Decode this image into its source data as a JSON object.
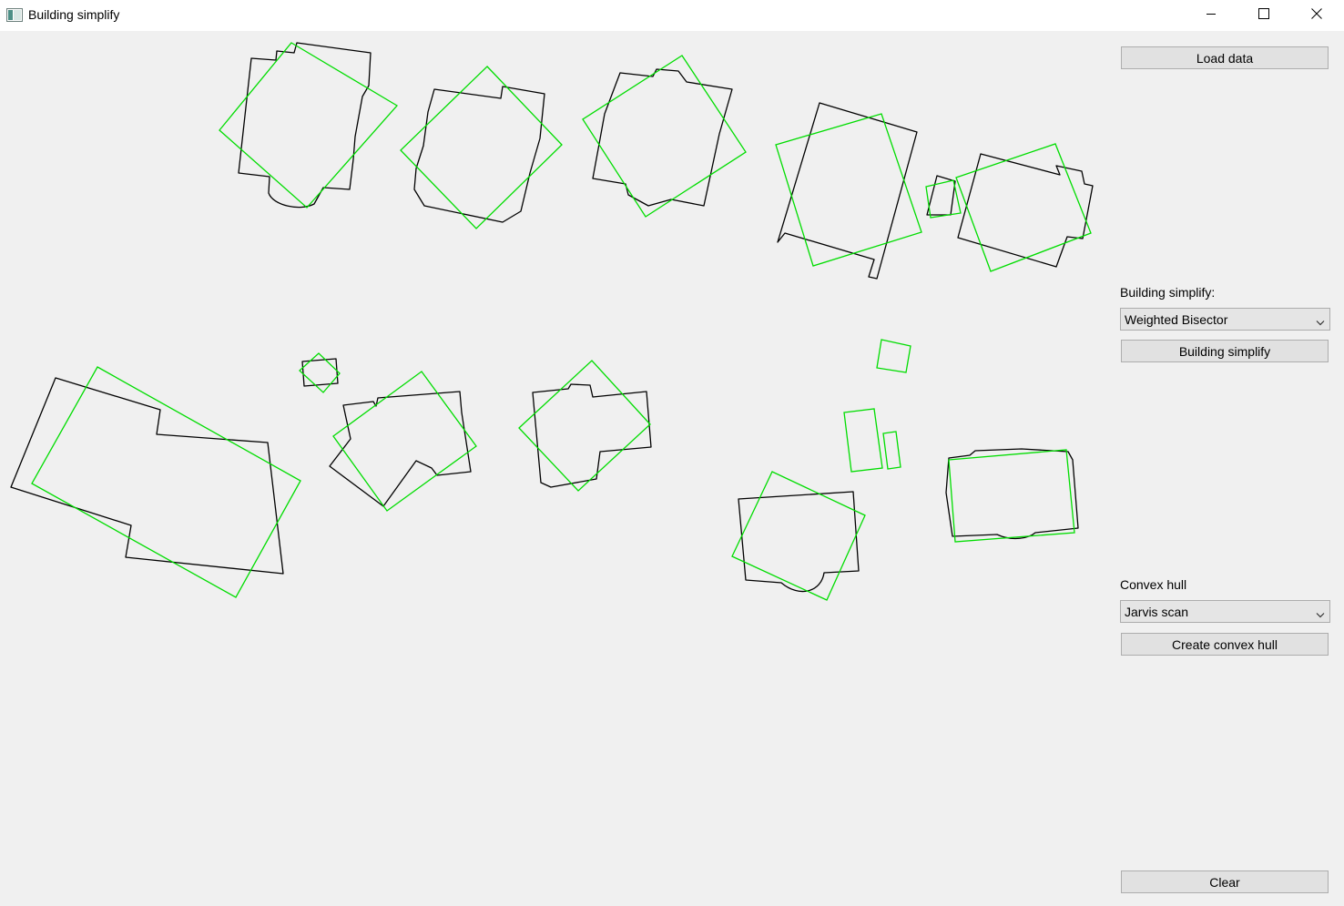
{
  "window": {
    "title": "Building simplify",
    "icons": [
      "app-icon",
      "minimize-icon",
      "maximize-icon",
      "close-icon"
    ]
  },
  "controls": {
    "load_label": "Load data",
    "simplify_label": "Building simplify:",
    "simplify_selected": "Weighted Bisector",
    "simplify_button": "Building simplify",
    "hull_label": "Convex hull",
    "hull_selected": "Jarvis scan",
    "hull_button": "Create convex hull",
    "clear_label": "Clear"
  },
  "colors": {
    "building_outline": "#000000",
    "simplified_outline": "#00dd00",
    "background": "#f0f0f0"
  }
}
